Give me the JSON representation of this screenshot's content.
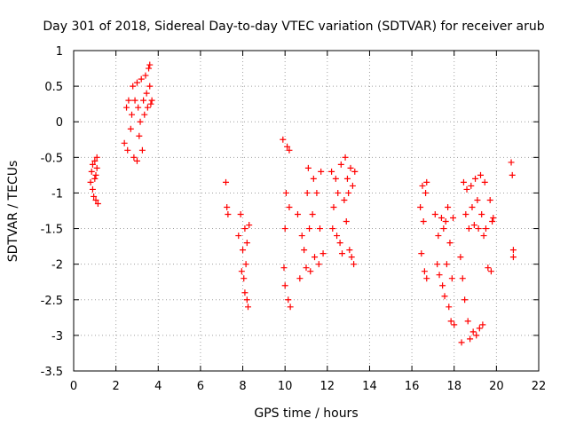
{
  "chart_data": {
    "type": "scatter",
    "title": "Day 301 of 2018, Sidereal Day-to-day VTEC variation (SDTVAR) for receiver arub",
    "xlabel": "GPS time / hours",
    "ylabel": "SDTVAR / TECUs",
    "xlim": [
      0,
      22
    ],
    "ylim": [
      -3.5,
      1
    ],
    "x_ticks": [
      0,
      2,
      4,
      6,
      8,
      10,
      12,
      14,
      16,
      18,
      20,
      22
    ],
    "x_tick_labels": [
      "0",
      "2",
      "4",
      "6",
      "8",
      "10",
      "12",
      "14",
      "16",
      "18",
      "20",
      "22"
    ],
    "y_ticks": [
      1,
      0.5,
      0,
      -0.5,
      -1,
      -1.5,
      -2,
      -2.5,
      -3,
      -3.5
    ],
    "y_tick_labels": [
      "1",
      "0.5",
      "0",
      "-0.5",
      "-1",
      "-1.5",
      "-2",
      "-2.5",
      "-3",
      "-3.5"
    ],
    "grid": true,
    "marker": "+",
    "color": "#ff0000",
    "series": [
      {
        "name": "SDTVAR",
        "points": [
          [
            0.8,
            -0.85
          ],
          [
            0.85,
            -0.7
          ],
          [
            0.9,
            -0.6
          ],
          [
            0.9,
            -0.95
          ],
          [
            0.95,
            -1.05
          ],
          [
            1.0,
            -0.55
          ],
          [
            1.0,
            -0.8
          ],
          [
            1.05,
            -0.75
          ],
          [
            1.05,
            -1.1
          ],
          [
            1.1,
            -0.5
          ],
          [
            1.1,
            -0.65
          ],
          [
            1.15,
            -1.15
          ],
          [
            2.4,
            -0.3
          ],
          [
            2.5,
            0.2
          ],
          [
            2.55,
            -0.4
          ],
          [
            2.6,
            0.3
          ],
          [
            2.7,
            -0.1
          ],
          [
            2.75,
            0.1
          ],
          [
            2.8,
            0.5
          ],
          [
            2.85,
            -0.5
          ],
          [
            2.9,
            0.3
          ],
          [
            3.0,
            -0.55
          ],
          [
            3.0,
            0.55
          ],
          [
            3.05,
            0.2
          ],
          [
            3.1,
            -0.2
          ],
          [
            3.15,
            0.0
          ],
          [
            3.2,
            0.6
          ],
          [
            3.25,
            -0.4
          ],
          [
            3.3,
            0.3
          ],
          [
            3.35,
            0.1
          ],
          [
            3.4,
            0.65
          ],
          [
            3.45,
            0.4
          ],
          [
            3.5,
            0.2
          ],
          [
            3.55,
            0.75
          ],
          [
            3.6,
            0.5
          ],
          [
            3.65,
            0.25
          ],
          [
            3.6,
            0.8
          ],
          [
            3.7,
            0.3
          ],
          [
            7.2,
            -0.85
          ],
          [
            7.25,
            -1.2
          ],
          [
            7.3,
            -1.3
          ],
          [
            7.8,
            -1.6
          ],
          [
            7.9,
            -1.3
          ],
          [
            7.95,
            -2.1
          ],
          [
            8.0,
            -1.8
          ],
          [
            8.05,
            -2.2
          ],
          [
            8.1,
            -1.5
          ],
          [
            8.1,
            -2.4
          ],
          [
            8.15,
            -2.0
          ],
          [
            8.2,
            -2.5
          ],
          [
            8.25,
            -2.6
          ],
          [
            8.2,
            -1.7
          ],
          [
            8.3,
            -1.45
          ],
          [
            9.9,
            -0.25
          ],
          [
            9.95,
            -2.05
          ],
          [
            10.0,
            -1.5
          ],
          [
            10.0,
            -2.3
          ],
          [
            10.05,
            -1.0
          ],
          [
            10.1,
            -0.35
          ],
          [
            10.15,
            -2.5
          ],
          [
            10.2,
            -1.2
          ],
          [
            10.2,
            -0.4
          ],
          [
            10.25,
            -2.6
          ],
          [
            10.6,
            -1.3
          ],
          [
            10.7,
            -2.2
          ],
          [
            10.8,
            -1.6
          ],
          [
            10.9,
            -1.8
          ],
          [
            11.0,
            -2.05
          ],
          [
            11.05,
            -1.0
          ],
          [
            11.1,
            -0.65
          ],
          [
            11.15,
            -1.5
          ],
          [
            11.2,
            -2.1
          ],
          [
            11.3,
            -1.3
          ],
          [
            11.35,
            -0.8
          ],
          [
            11.4,
            -1.9
          ],
          [
            11.5,
            -1.0
          ],
          [
            11.6,
            -2.0
          ],
          [
            11.65,
            -1.5
          ],
          [
            11.7,
            -0.7
          ],
          [
            11.8,
            -1.85
          ],
          [
            12.2,
            -0.7
          ],
          [
            12.25,
            -1.5
          ],
          [
            12.3,
            -1.2
          ],
          [
            12.4,
            -0.8
          ],
          [
            12.45,
            -1.6
          ],
          [
            12.5,
            -1.0
          ],
          [
            12.6,
            -1.7
          ],
          [
            12.65,
            -0.6
          ],
          [
            12.7,
            -1.85
          ],
          [
            12.8,
            -1.1
          ],
          [
            12.85,
            -0.5
          ],
          [
            12.9,
            -1.4
          ],
          [
            12.95,
            -0.8
          ],
          [
            13.0,
            -1.0
          ],
          [
            13.05,
            -1.8
          ],
          [
            13.1,
            -0.65
          ],
          [
            13.15,
            -1.9
          ],
          [
            13.2,
            -0.9
          ],
          [
            13.25,
            -2.0
          ],
          [
            13.3,
            -0.7
          ],
          [
            16.4,
            -1.2
          ],
          [
            16.45,
            -1.85
          ],
          [
            16.5,
            -0.9
          ],
          [
            16.55,
            -1.4
          ],
          [
            16.6,
            -2.1
          ],
          [
            16.65,
            -1.0
          ],
          [
            16.7,
            -2.2
          ],
          [
            16.7,
            -0.85
          ],
          [
            17.1,
            -1.3
          ],
          [
            17.2,
            -2.0
          ],
          [
            17.25,
            -1.6
          ],
          [
            17.3,
            -2.15
          ],
          [
            17.4,
            -1.35
          ],
          [
            17.45,
            -2.3
          ],
          [
            17.5,
            -1.5
          ],
          [
            17.55,
            -2.45
          ],
          [
            17.6,
            -1.4
          ],
          [
            17.65,
            -2.0
          ],
          [
            17.7,
            -1.2
          ],
          [
            17.75,
            -2.6
          ],
          [
            17.8,
            -1.7
          ],
          [
            17.85,
            -2.8
          ],
          [
            17.9,
            -2.2
          ],
          [
            17.95,
            -1.35
          ],
          [
            18.0,
            -2.85
          ],
          [
            18.3,
            -1.9
          ],
          [
            18.35,
            -3.1
          ],
          [
            18.4,
            -2.2
          ],
          [
            18.45,
            -0.85
          ],
          [
            18.5,
            -2.5
          ],
          [
            18.55,
            -1.3
          ],
          [
            18.6,
            -0.95
          ],
          [
            18.65,
            -2.8
          ],
          [
            18.7,
            -1.5
          ],
          [
            18.75,
            -3.05
          ],
          [
            18.8,
            -0.9
          ],
          [
            18.85,
            -1.2
          ],
          [
            18.9,
            -2.95
          ],
          [
            18.95,
            -1.45
          ],
          [
            19.0,
            -0.8
          ],
          [
            19.05,
            -3.0
          ],
          [
            19.1,
            -1.1
          ],
          [
            19.15,
            -1.5
          ],
          [
            19.2,
            -2.9
          ],
          [
            19.25,
            -0.75
          ],
          [
            19.3,
            -1.3
          ],
          [
            19.35,
            -2.85
          ],
          [
            19.4,
            -1.6
          ],
          [
            19.45,
            -0.85
          ],
          [
            19.5,
            -1.5
          ],
          [
            19.6,
            -2.05
          ],
          [
            19.7,
            -1.1
          ],
          [
            19.75,
            -2.1
          ],
          [
            19.8,
            -1.4
          ],
          [
            19.85,
            -1.35
          ],
          [
            20.7,
            -0.57
          ],
          [
            20.75,
            -0.75
          ],
          [
            20.8,
            -1.8
          ],
          [
            20.8,
            -1.9
          ]
        ]
      }
    ]
  }
}
